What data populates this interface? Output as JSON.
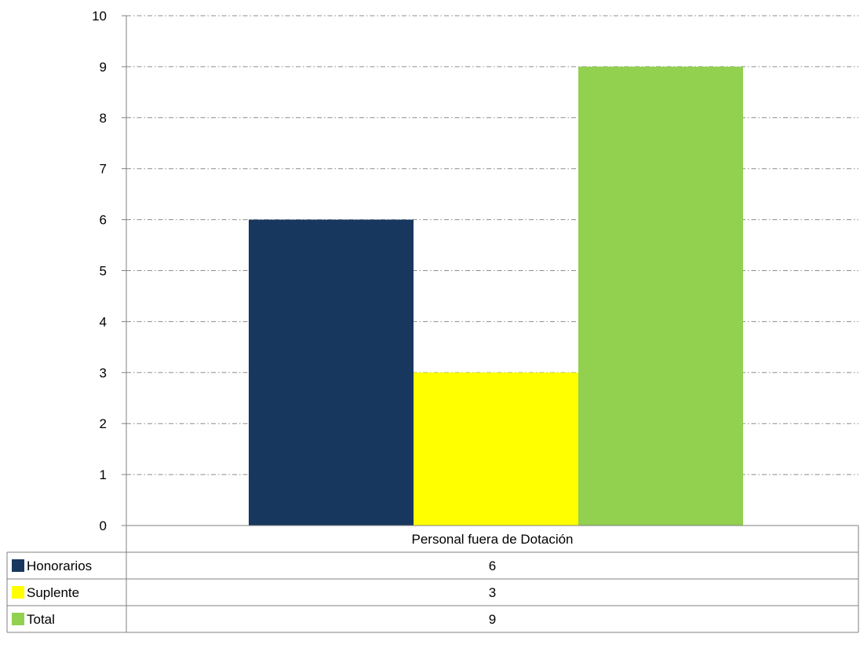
{
  "chart_data": {
    "type": "bar",
    "title": "",
    "xlabel": "",
    "ylabel": "",
    "categories": [
      "Personal fuera de Dotación"
    ],
    "series": [
      {
        "name": "Honorarios",
        "values": [
          6
        ],
        "color": "#17375e"
      },
      {
        "name": "Suplente",
        "values": [
          3
        ],
        "color": "#ffff00"
      },
      {
        "name": "Total",
        "values": [
          9
        ],
        "color": "#92d050"
      }
    ],
    "ylim": [
      0,
      10
    ],
    "yticks": [
      "0",
      "1",
      "2",
      "3",
      "4",
      "5",
      "6",
      "7",
      "8",
      "9",
      "10"
    ],
    "grid": true,
    "legend": "data-table-left",
    "data_table": true
  }
}
